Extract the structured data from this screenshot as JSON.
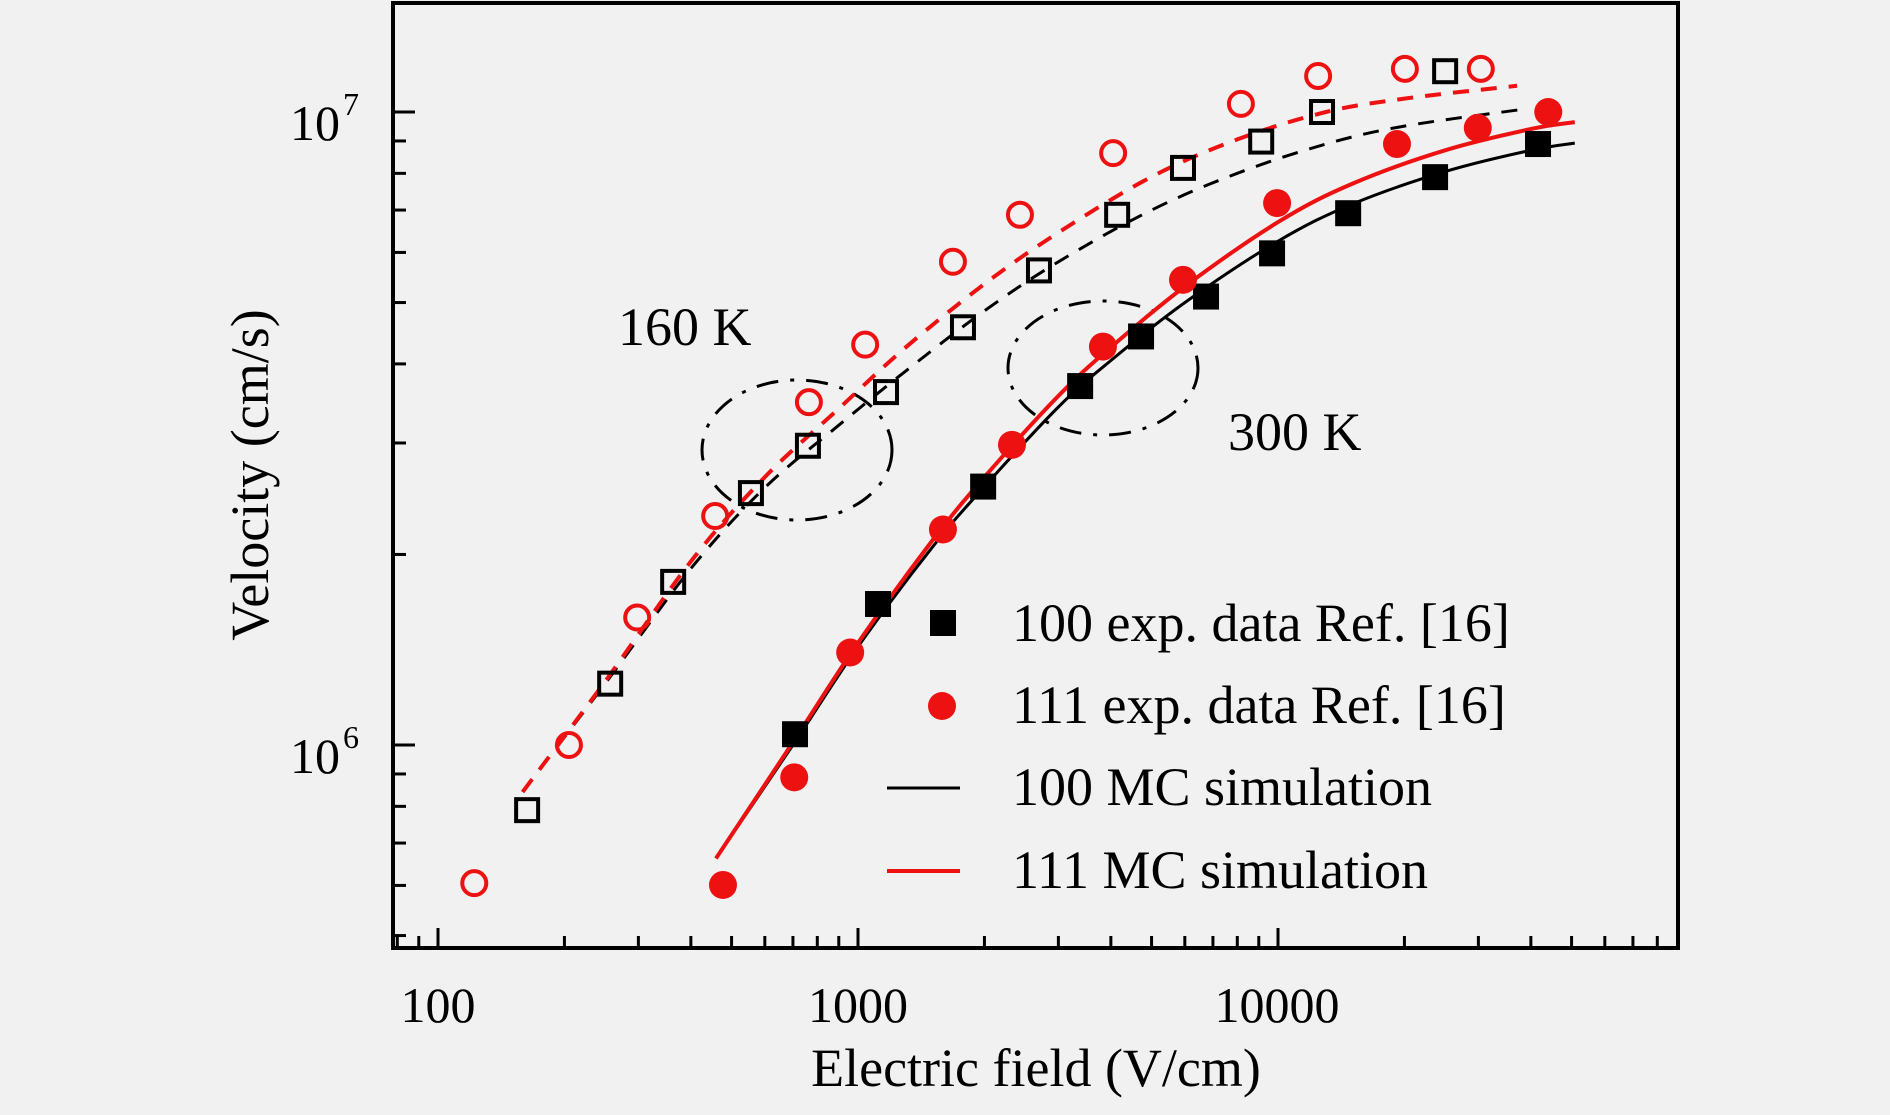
{
  "chart_data": {
    "type": "scatter",
    "title": "",
    "xlabel": "Electric field (V/cm)",
    "ylabel": "Velocity (cm/s)",
    "xscale": "log",
    "yscale": "log",
    "xlim": [
      78,
      90000
    ],
    "ylim": [
      480000,
      14900000
    ],
    "grid": false,
    "x_ticks": [
      {
        "value": 100,
        "label": "100"
      },
      {
        "value": 1000,
        "label": "1000"
      },
      {
        "value": 10000,
        "label": "10000"
      }
    ],
    "y_ticks": [
      {
        "value": 1000000,
        "base": "10",
        "exp": "6"
      },
      {
        "value": 10000000,
        "base": "10",
        "exp": "7"
      }
    ],
    "legend_position": "bottom-right",
    "annotations": [
      {
        "text": "160 K",
        "group": "160K",
        "ellipse_center": [
          850,
          3000000
        ]
      },
      {
        "text": "300 K",
        "group": "300K",
        "ellipse_center": [
          3800,
          4000000
        ]
      }
    ],
    "series": [
      {
        "name": "100 exp. data Ref. [16]",
        "in_legend": true,
        "kind": "marker",
        "marker": "square",
        "filled": true,
        "color": "#000000",
        "temperature": "300 K",
        "x": [
          708,
          1116,
          1986,
          3380,
          4720,
          6740,
          9680,
          14690,
          23660,
          41600
        ],
        "y": [
          1040000,
          1670000,
          2560000,
          3690000,
          4420000,
          5110000,
          5980000,
          6920000,
          7890000,
          8900000
        ]
      },
      {
        "name": "111 exp. data Ref. [16]",
        "in_legend": true,
        "kind": "marker",
        "marker": "circle",
        "filled": true,
        "color": "#ee1111",
        "temperature": "300 K",
        "x": [
          477,
          705,
          958,
          1593,
          2326,
          3830,
          5940,
          9950,
          19200,
          29900,
          44000
        ],
        "y": [
          601000,
          889000,
          1400000,
          2190000,
          2980000,
          4260000,
          5430000,
          7180000,
          8900000,
          9440000,
          10000000
        ]
      },
      {
        "name": "100 MC simulation",
        "in_legend": true,
        "kind": "line",
        "dash": "solid",
        "color": "#000000",
        "temperature": "300 K",
        "x": [
          459,
          700,
          1000,
          1500,
          2000,
          3000,
          4000,
          6000,
          10000,
          15000,
          25000,
          40000,
          50900
        ],
        "y": [
          662000,
          1000000,
          1430000,
          2050000,
          2560000,
          3420000,
          4050000,
          5000000,
          6250000,
          7150000,
          8050000,
          8700000,
          8930000
        ]
      },
      {
        "name": "111 MC simulation",
        "in_legend": true,
        "kind": "line",
        "dash": "solid",
        "color": "#ee1111",
        "temperature": "300 K",
        "x": [
          459,
          700,
          1000,
          1500,
          2000,
          3000,
          4000,
          6000,
          10000,
          15000,
          25000,
          40000,
          50900
        ],
        "y": [
          662000,
          1010000,
          1450000,
          2100000,
          2650000,
          3560000,
          4250000,
          5300000,
          6700000,
          7700000,
          8700000,
          9400000,
          9640000
        ]
      },
      {
        "name": "100 exp. data 160 K",
        "in_legend": false,
        "kind": "marker",
        "marker": "square",
        "filled": false,
        "color": "#000000",
        "temperature": "160 K",
        "x": [
          163,
          257,
          363,
          556,
          760,
          1166,
          1778,
          2697,
          4140,
          5940,
          9120,
          12730,
          25000
        ],
        "y": [
          789000,
          1250000,
          1810000,
          2500000,
          2970000,
          3610000,
          4570000,
          5620000,
          6880000,
          8160000,
          8980000,
          10000000,
          11600000
        ]
      },
      {
        "name": "111 exp. data 160 K",
        "in_legend": false,
        "kind": "marker",
        "marker": "circle",
        "filled": false,
        "color": "#ee1111",
        "temperature": "160 K",
        "x": [
          122,
          205,
          298,
          457,
          764,
          1040,
          1683,
          2430,
          4050,
          8160,
          12460,
          20050,
          30400
        ],
        "y": [
          605000,
          1000000,
          1590000,
          2300000,
          3480000,
          4290000,
          5800000,
          6880000,
          8610000,
          10300000,
          11400000,
          11700000,
          11700000
        ]
      },
      {
        "name": "100 MC simulation 160 K",
        "in_legend": false,
        "kind": "line",
        "dash": "dashed",
        "color": "#000000",
        "temperature": "160 K",
        "x": [
          159,
          250,
          400,
          600,
          900,
          1300,
          2000,
          3000,
          5000,
          8000,
          13000,
          20000,
          38300
        ],
        "y": [
          843000,
          1250000,
          1900000,
          2550000,
          3200000,
          3900000,
          4850000,
          5800000,
          7000000,
          8000000,
          8900000,
          9500000,
          10100000
        ]
      },
      {
        "name": "111 MC simulation 160 K",
        "in_legend": false,
        "kind": "line",
        "dash": "dashed",
        "color": "#ee1111",
        "temperature": "160 K",
        "x": [
          159,
          250,
          400,
          600,
          900,
          1300,
          2000,
          3000,
          5000,
          8000,
          13000,
          20000,
          37100
        ],
        "y": [
          843000,
          1260000,
          1950000,
          2650000,
          3400000,
          4250000,
          5350000,
          6450000,
          7900000,
          9050000,
          10000000,
          10500000,
          11000000
        ]
      }
    ]
  }
}
